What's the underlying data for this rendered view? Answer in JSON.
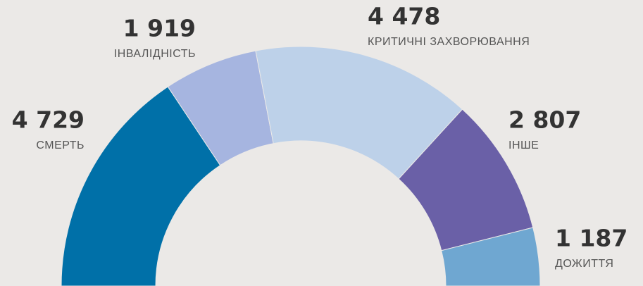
{
  "chart_data": {
    "type": "semi-donut",
    "categories": [
      "СМЕРТЬ",
      "ІНВАЛІДНІСТЬ",
      "КРИТИЧНІ ЗАХВОРЮВАННЯ",
      "ІНШЕ",
      "ДОЖИТТЯ"
    ],
    "values": [
      4729,
      1919,
      4478,
      2807,
      1187
    ],
    "value_labels": [
      "4 729",
      "1 919",
      "4 478",
      "2 807",
      "1 187"
    ],
    "colors": [
      "#0070a8",
      "#a6b5e0",
      "#bdd1e9",
      "#6a60a7",
      "#6fa7d1"
    ]
  }
}
